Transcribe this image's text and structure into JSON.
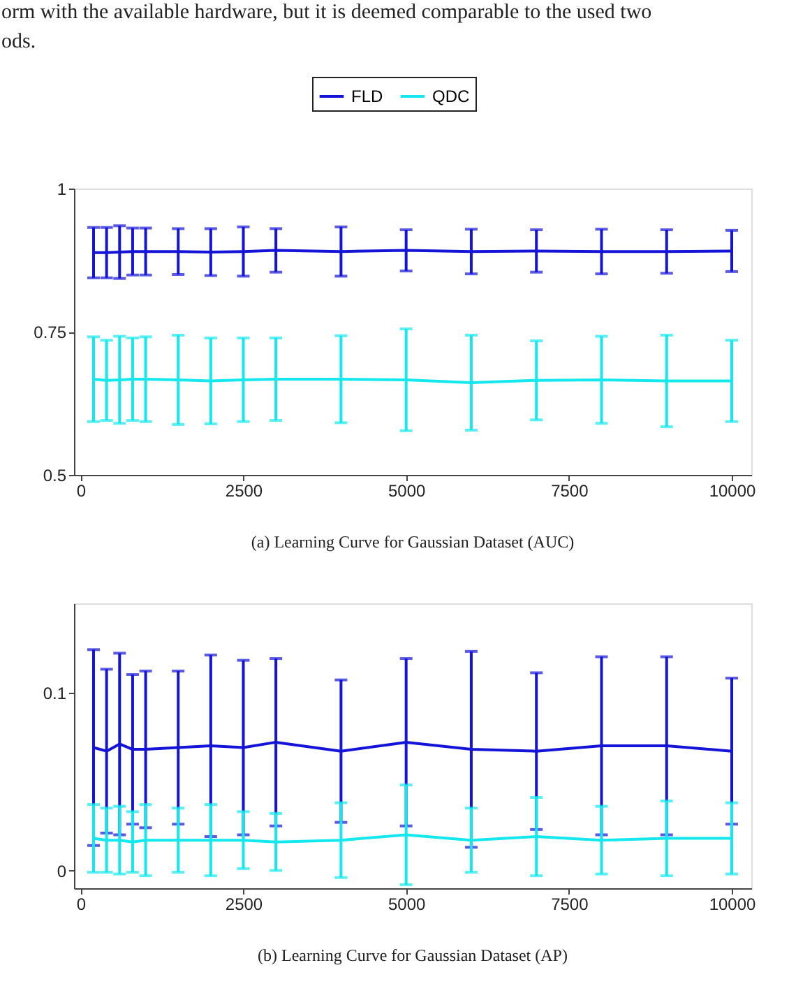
{
  "chart_data": [
    {
      "type": "line",
      "x": [
        200,
        400,
        600,
        800,
        1000,
        1500,
        2000,
        2500,
        3000,
        4000,
        5000,
        6000,
        7000,
        8000,
        9000,
        10000
      ],
      "series": [
        {
          "name": "FLD",
          "color": "#1414d8",
          "values": [
            0.888,
            0.888,
            0.889,
            0.89,
            0.89,
            0.89,
            0.889,
            0.89,
            0.892,
            0.89,
            0.892,
            0.89,
            0.891,
            0.89,
            0.89,
            0.891
          ],
          "errors": [
            0.044,
            0.044,
            0.046,
            0.041,
            0.041,
            0.04,
            0.041,
            0.043,
            0.038,
            0.043,
            0.036,
            0.039,
            0.037,
            0.039,
            0.038,
            0.036
          ]
        },
        {
          "name": "QDC",
          "color": "#14e8ee",
          "values": [
            0.667,
            0.665,
            0.666,
            0.667,
            0.667,
            0.666,
            0.664,
            0.666,
            0.667,
            0.667,
            0.666,
            0.661,
            0.665,
            0.666,
            0.664,
            0.664
          ],
          "errors": [
            0.074,
            0.07,
            0.076,
            0.072,
            0.074,
            0.078,
            0.075,
            0.073,
            0.072,
            0.076,
            0.089,
            0.083,
            0.069,
            0.076,
            0.08,
            0.071
          ]
        }
      ],
      "xlim": [
        -100,
        10300
      ],
      "xticks": [
        0,
        2500,
        5000,
        7500,
        10000
      ],
      "ylim": [
        0.5,
        1
      ],
      "yticks": [
        0.5,
        0.75,
        1
      ],
      "legend": "top",
      "grid": false,
      "annotations": [
        "orm with the available hardware, but it is deemed comparable to the used two",
        "ods.",
        "(a)  Learning Curve for Gaussian Dataset (AUC)"
      ]
    },
    {
      "type": "line",
      "x": [
        200,
        400,
        600,
        800,
        1000,
        1500,
        2000,
        2500,
        3000,
        4000,
        5000,
        6000,
        7000,
        8000,
        9000,
        10000
      ],
      "series": [
        {
          "color": "#1414d8",
          "values": [
            0.069,
            0.067,
            0.071,
            0.068,
            0.068,
            0.069,
            0.07,
            0.069,
            0.072,
            0.067,
            0.072,
            0.068,
            0.067,
            0.07,
            0.07,
            0.067
          ],
          "errors": [
            0.055,
            0.046,
            0.051,
            0.042,
            0.044,
            0.043,
            0.051,
            0.049,
            0.047,
            0.04,
            0.047,
            0.055,
            0.044,
            0.05,
            0.05,
            0.041
          ]
        },
        {
          "color": "#14e8ee",
          "values": [
            0.018,
            0.017,
            0.017,
            0.016,
            0.017,
            0.017,
            0.017,
            0.017,
            0.016,
            0.017,
            0.02,
            0.017,
            0.019,
            0.017,
            0.018,
            0.018
          ],
          "errors": [
            0.019,
            0.018,
            0.019,
            0.017,
            0.02,
            0.018,
            0.02,
            0.016,
            0.016,
            0.021,
            0.028,
            0.018,
            0.022,
            0.019,
            0.021,
            0.02
          ]
        }
      ],
      "xlim": [
        -100,
        10300
      ],
      "xticks": [
        0,
        2500,
        5000,
        7500,
        10000
      ],
      "ylim": [
        -0.01,
        0.15
      ],
      "yticks": [
        0,
        0.1
      ],
      "legend": false,
      "grid": false,
      "annotations": [
        "(b)  Learning Curve for Gaussian Dataset (AP)"
      ]
    }
  ]
}
